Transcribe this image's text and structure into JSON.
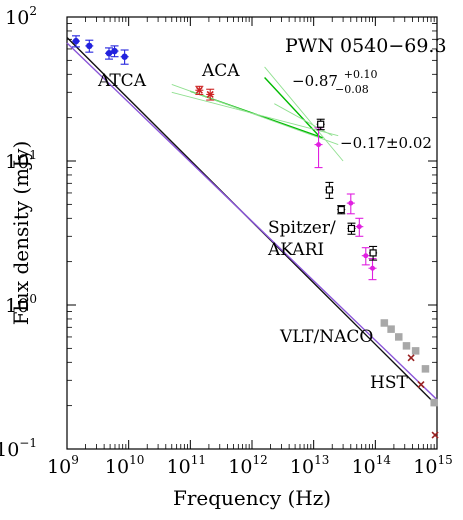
{
  "chart_data": {
    "type": "scatter",
    "title": "PWN 0540−69.3",
    "xlabel": "Frequency (Hz)",
    "ylabel": "Flux density (mJy)",
    "x_scale": "log",
    "y_scale": "log",
    "xlim": [
      1000000000.0,
      1000000000000000.0
    ],
    "ylim": [
      0.1,
      100
    ],
    "x_ticks": [
      {
        "value": 1000000000.0,
        "base": "10",
        "exp": "9"
      },
      {
        "value": 10000000000.0,
        "base": "10",
        "exp": "10"
      },
      {
        "value": 100000000000.0,
        "base": "10",
        "exp": "11"
      },
      {
        "value": 1000000000000.0,
        "base": "10",
        "exp": "12"
      },
      {
        "value": 10000000000000.0,
        "base": "10",
        "exp": "13"
      },
      {
        "value": 100000000000000.0,
        "base": "10",
        "exp": "14"
      },
      {
        "value": 1000000000000000.0,
        "base": "10",
        "exp": "15"
      }
    ],
    "y_ticks": [
      {
        "value": 0.1,
        "label": "10",
        "exp": "−1"
      },
      {
        "value": 1,
        "label": "10",
        "exp": "0"
      },
      {
        "value": 10,
        "label": "10",
        "exp": "1"
      },
      {
        "value": 100,
        "label": "10",
        "exp": "2"
      }
    ],
    "series": [
      {
        "name": "ATCA",
        "color": "#2222dd",
        "marker": "circle",
        "points": [
          [
            1400000000.0,
            68,
            6
          ],
          [
            2300000000.0,
            63,
            6
          ],
          [
            4800000000.0,
            56,
            5
          ],
          [
            5900000000.0,
            58,
            5
          ],
          [
            8600000000.0,
            53,
            6
          ]
        ]
      },
      {
        "name": "ACA",
        "color": "#cc2222",
        "marker": "x",
        "points": [
          [
            140000000000.0,
            31,
            2
          ],
          [
            210000000000.0,
            29,
            2.5
          ]
        ]
      },
      {
        "name": "Spitzer/AKARI",
        "color": "#e020e0",
        "marker": "dot",
        "points": [
          [
            12000000000000.0,
            13,
            4
          ],
          [
            40000000000000.0,
            5.1,
            0.8
          ],
          [
            55000000000000.0,
            3.5,
            0.5
          ],
          [
            70000000000000.0,
            2.2,
            0.3
          ],
          [
            90000000000000.0,
            1.8,
            0.3
          ]
        ]
      },
      {
        "name": "",
        "color": "#000000",
        "marker": "square",
        "points": [
          [
            13000000000000.0,
            18,
            1.5
          ],
          [
            18000000000000.0,
            6.3,
            0.8
          ],
          [
            28000000000000.0,
            4.6,
            0.3
          ],
          [
            41000000000000.0,
            3.4,
            0.3
          ],
          [
            92000000000000.0,
            2.3,
            0.25
          ]
        ]
      },
      {
        "name": "VLT/NACO",
        "color": "#a8a8a8",
        "marker": "square",
        "points": [
          [
            140000000000000.0,
            0.75
          ],
          [
            180000000000000.0,
            0.68
          ],
          [
            240000000000000.0,
            0.6
          ],
          [
            320000000000000.0,
            0.52
          ],
          [
            450000000000000.0,
            0.48
          ],
          [
            650000000000000.0,
            0.36
          ],
          [
            900000000000000.0,
            0.21
          ]
        ]
      },
      {
        "name": "HST",
        "color": "#992222",
        "marker": "x",
        "points": [
          [
            380000000000000.0,
            0.43
          ],
          [
            550000000000000.0,
            0.28
          ],
          [
            930000000000000.0,
            0.125
          ]
        ]
      }
    ],
    "fits": [
      {
        "color": "#111111",
        "line": [
          [
            1000000000.0,
            72
          ],
          [
            1000000000000000.0,
            0.2
          ]
        ]
      },
      {
        "color": "#8a55d8",
        "line": [
          [
            1000000000.0,
            66
          ],
          [
            1000000000000000.0,
            0.22
          ]
        ]
      },
      {
        "color": "#00bb00",
        "line": [
          [
            100000000000.0,
            30.5
          ],
          [
            14000000000000.0,
            14.5
          ]
        ]
      },
      {
        "color": "#00bb00",
        "line": [
          [
            1600000000000.0,
            38
          ],
          [
            13000000000000.0,
            14.5
          ]
        ]
      },
      {
        "color": "#90e090",
        "line": [
          [
            50000000000.0,
            34
          ],
          [
            25000000000000.0,
            13
          ]
        ]
      },
      {
        "color": "#90e090",
        "line": [
          [
            50000000000.0,
            30
          ],
          [
            25000000000000.0,
            15
          ]
        ]
      },
      {
        "color": "#90e090",
        "line": [
          [
            1600000000000.0,
            45
          ],
          [
            30000000000000.0,
            10
          ]
        ]
      },
      {
        "color": "#90e090",
        "line": [
          [
            2300000000000.0,
            25
          ],
          [
            20000000000000.0,
            15
          ]
        ]
      }
    ],
    "annotations": {
      "atca": "ATCA",
      "aca": "ACA",
      "spitzer_1": "Spitzer/",
      "spitzer_2": "AKARI",
      "vlt": "VLT/NACO",
      "hst": "HST",
      "index_ir_base": "−0.87",
      "index_ir_plus": "+0.10",
      "index_ir_minus": "−0.08",
      "index_radio": "−0.17±0.02"
    }
  }
}
